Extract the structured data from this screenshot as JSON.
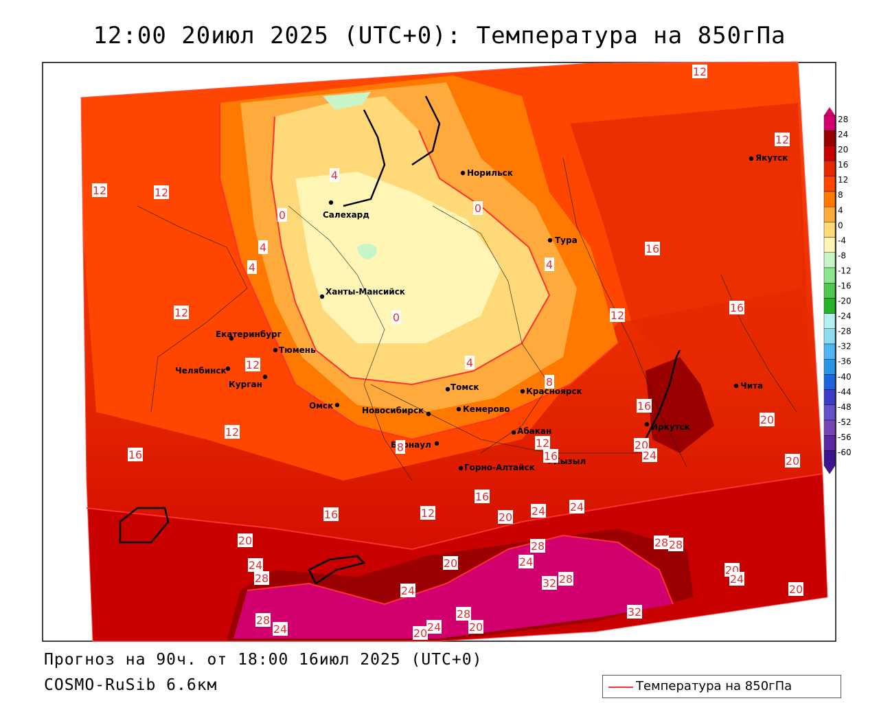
{
  "title": "12:00 20июл 2025 (UTC+0): Температура на 850гПа",
  "forecast_line": "Прогноз на 90ч. от 18:00 16июл 2025 (UTC+0)",
  "model": "COSMO-RuSib 6.6км",
  "legend_label": "Температура на 850гПа",
  "colorbar": {
    "ticks": [
      "28",
      "24",
      "20",
      "16",
      "12",
      "8",
      "4",
      "0",
      "-4",
      "-8",
      "-12",
      "-16",
      "-20",
      "-24",
      "-28",
      "-32",
      "-36",
      "-40",
      "-44",
      "-48",
      "-52",
      "-56",
      "-60"
    ],
    "colors": [
      "#d2006e",
      "#9b0000",
      "#c80000",
      "#e62800",
      "#ff4600",
      "#ff7800",
      "#ffaa3c",
      "#ffd978",
      "#fff5b4",
      "#c8f5c8",
      "#8ce68c",
      "#50c850",
      "#28b428",
      "#b4f0f0",
      "#8cdcf0",
      "#50b4f0",
      "#2896e6",
      "#1e64dc",
      "#3c3cc8",
      "#6450c8",
      "#7846b4",
      "#5a28a0",
      "#3c1490"
    ]
  },
  "cities": [
    {
      "name": "Норильск"
    },
    {
      "name": "Салехард"
    },
    {
      "name": "Тура"
    },
    {
      "name": "Якутск"
    },
    {
      "name": "Ханты-Мансийск"
    },
    {
      "name": "Екатеринбург"
    },
    {
      "name": "Тюмень"
    },
    {
      "name": "Челябинск"
    },
    {
      "name": "Курган"
    },
    {
      "name": "Омск"
    },
    {
      "name": "Новосибирск"
    },
    {
      "name": "Томск"
    },
    {
      "name": "Кемерово"
    },
    {
      "name": "Красноярск"
    },
    {
      "name": "Барнаул"
    },
    {
      "name": "Абакан"
    },
    {
      "name": "Горно-Алтайск"
    },
    {
      "name": "Кызыл"
    },
    {
      "name": "Иркутск"
    },
    {
      "name": "Чита"
    }
  ],
  "contour_labels": [
    "12",
    "12",
    "12",
    "12",
    "12",
    "12",
    "12",
    "12",
    "12",
    "12",
    "16",
    "16",
    "16",
    "16",
    "16",
    "16",
    "16",
    "0",
    "0",
    "0",
    "4",
    "4",
    "4",
    "4",
    "4",
    "8",
    "8",
    "20",
    "20",
    "20",
    "20",
    "20",
    "20",
    "20",
    "20",
    "20",
    "24",
    "24",
    "24",
    "24",
    "24",
    "24",
    "24",
    "24",
    "24",
    "28",
    "28",
    "28",
    "28",
    "28",
    "28",
    "28",
    "32",
    "32",
    "20"
  ]
}
